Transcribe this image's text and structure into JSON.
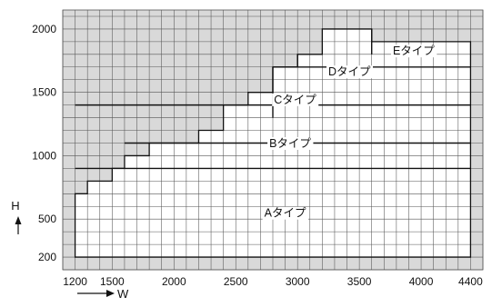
{
  "chart_data": {
    "type": "heatmap",
    "title": "",
    "xlabel": "W",
    "ylabel": "H",
    "x_range": [
      1100,
      4500
    ],
    "y_range": [
      100,
      2150
    ],
    "x_ticks": [
      1200,
      1500,
      2000,
      2500,
      3000,
      3500,
      4000,
      4400
    ],
    "y_ticks": [
      200,
      500,
      1000,
      1500,
      2000
    ],
    "grid": true,
    "grid_step": {
      "x": 100,
      "y": 100
    },
    "colors": {
      "outside": "#d9d9d9",
      "inside": "#ffffff",
      "grid": "#555555",
      "boundary": "#111111"
    },
    "available_region": {
      "description_points_w_h": [
        [
          1200,
          200
        ],
        [
          1200,
          700
        ],
        [
          1300,
          700
        ],
        [
          1300,
          800
        ],
        [
          1500,
          800
        ],
        [
          1500,
          900
        ],
        [
          1600,
          900
        ],
        [
          1600,
          1000
        ],
        [
          1800,
          1000
        ],
        [
          1800,
          1100
        ],
        [
          2200,
          1100
        ],
        [
          2200,
          1200
        ],
        [
          2400,
          1200
        ],
        [
          2400,
          1300
        ],
        [
          2400,
          1400
        ],
        [
          2600,
          1400
        ],
        [
          2600,
          1500
        ],
        [
          2800,
          1500
        ],
        [
          2800,
          1600
        ],
        [
          2800,
          1700
        ],
        [
          3000,
          1700
        ],
        [
          3000,
          1800
        ],
        [
          3200,
          1800
        ],
        [
          3200,
          1900
        ],
        [
          3200,
          2000
        ],
        [
          3600,
          2000
        ],
        [
          3600,
          1900
        ],
        [
          4400,
          1900
        ],
        [
          4400,
          200
        ]
      ]
    },
    "zones": [
      {
        "name": "Aタイプ",
        "w_min": 1200,
        "w_max": 4400,
        "h_min": 200,
        "h_max": 900,
        "label_at": [
          2900,
          550
        ]
      },
      {
        "name": "Bタイプ",
        "w_min": 1600,
        "w_max": 4400,
        "h_min": 900,
        "h_max": 1100,
        "label_at": [
          2940,
          1100
        ]
      },
      {
        "name": "Cタイプ",
        "w_min": 2400,
        "w_max": 4400,
        "h_min": 1100,
        "h_max": 1400,
        "label_at": [
          2980,
          1445
        ]
      },
      {
        "name": "Dタイプ",
        "w_min": 2800,
        "w_max": 4400,
        "h_min": 1400,
        "h_max": 1700,
        "label_at": [
          3420,
          1665
        ]
      },
      {
        "name": "Eタイプ",
        "w_min": 3000,
        "w_max": 4400,
        "h_min": 1700,
        "h_max": 2000,
        "label_at": [
          3940,
          1830
        ]
      }
    ],
    "boundary_lines": [
      {
        "h": 900,
        "w_from": 1200,
        "w_to": 4400
      },
      {
        "h": 1100,
        "w_from": 1600,
        "w_to": 4400
      },
      {
        "h": 1400,
        "w_from": 1200,
        "w_to": 4400
      },
      {
        "h": 1700,
        "w_from": 2800,
        "w_to": 4400
      },
      {
        "w": 2800,
        "h_from": 1300,
        "h_to": 1700
      },
      {
        "w": 3000,
        "h_from": 1700,
        "h_to": 1800
      },
      {
        "w": 3600,
        "h_from": 1800,
        "h_to": 2000
      }
    ]
  }
}
